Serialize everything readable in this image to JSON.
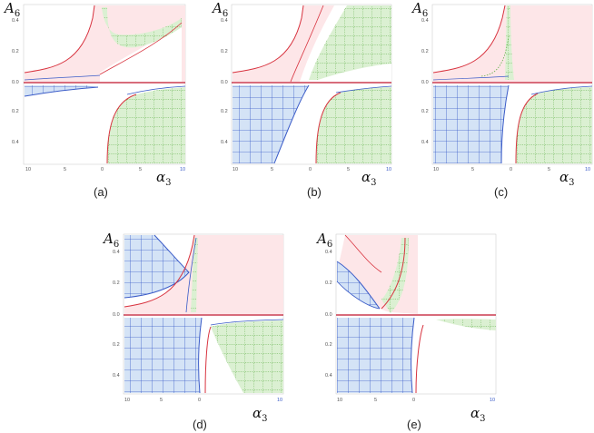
{
  "figure": {
    "x_axis_label": "α",
    "x_axis_subscript": "3",
    "y_axis_label": "A",
    "y_axis_subscript": "6"
  },
  "colors": {
    "pink_fill": "#fde6e8",
    "pink_line": "#d8333f",
    "blue_fill": "#d4e3f6",
    "blue_line": "#3b5cc8",
    "green_fill": "#dbf0d2",
    "green_dots": "#62b04a",
    "axis_line": "#c0142c"
  },
  "chart_data": [
    {
      "type": "region",
      "panel": "(a)",
      "x_ticks": [
        "10",
        "5",
        "0",
        "5",
        "10"
      ],
      "y_ticks_upper": [
        "0.4",
        "0.2",
        "0.0"
      ],
      "y_ticks_lower": [
        "0.2",
        "0.4"
      ]
    },
    {
      "type": "region",
      "panel": "(b)",
      "x_ticks": [
        "10",
        "5",
        "0",
        "5",
        "10"
      ],
      "y_ticks_upper": [
        "0.4",
        "0.2",
        "0.0"
      ],
      "y_ticks_lower": [
        "0.2",
        "0.4"
      ]
    },
    {
      "type": "region",
      "panel": "(c)",
      "x_ticks": [
        "10",
        "5",
        "0",
        "5",
        "10"
      ],
      "y_ticks_upper": [
        "0.4",
        "0.2",
        "0.0"
      ],
      "y_ticks_lower": [
        "0.2",
        "0.4"
      ]
    },
    {
      "type": "region",
      "panel": "(d)",
      "x_ticks": [
        "10",
        "5",
        "0",
        "10"
      ],
      "y_ticks_upper": [
        "0.4",
        "0.2",
        "0.0"
      ],
      "y_ticks_lower": [
        "0.2",
        "0.4"
      ]
    },
    {
      "type": "region",
      "panel": "(e)",
      "x_ticks": [
        "10",
        "5",
        "0",
        "10"
      ],
      "y_ticks_upper": [
        "0.4",
        "0.2",
        "0.0"
      ],
      "y_ticks_lower": [
        "0.2",
        "0.4"
      ]
    }
  ]
}
